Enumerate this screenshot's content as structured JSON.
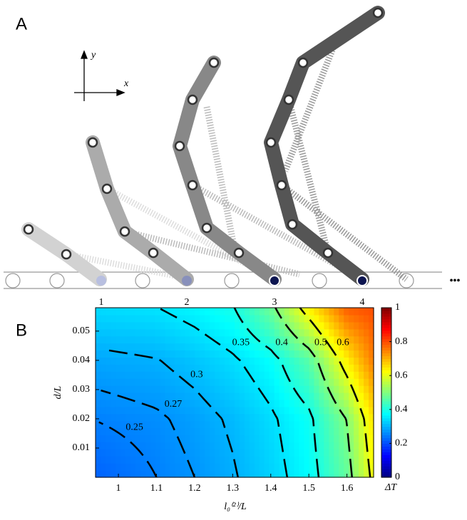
{
  "panel_a": {
    "label": "A",
    "axis_y": "y",
    "axis_x": "x",
    "steps": [
      "1",
      "2",
      "3",
      "4"
    ],
    "ellipsis": "•••"
  },
  "chart_data": {
    "type": "contour",
    "label": "B",
    "xlabel": "l₀⁽²⁾/L",
    "ylabel": "d/L",
    "colorbar_label": "ΔT",
    "x": [
      0.94,
      1.1,
      1.2,
      1.3,
      1.4,
      1.5,
      1.6,
      1.67
    ],
    "y": [
      0,
      0.02,
      0.04,
      0.058
    ],
    "z": [
      [
        0.22,
        0.25,
        0.27,
        0.295,
        0.331,
        0.375,
        0.472,
        0.619
      ],
      [
        0.251,
        0.264,
        0.282,
        0.307,
        0.342,
        0.387,
        0.503,
        0.654
      ],
      [
        0.288,
        0.298,
        0.317,
        0.343,
        0.379,
        0.46,
        0.636,
        0.754
      ],
      [
        0.34,
        0.349,
        0.369,
        0.396,
        0.481,
        0.636,
        0.784,
        0.8
      ]
    ],
    "levels": [
      0.25,
      0.27,
      0.3,
      0.35,
      0.4,
      0.5,
      0.6
    ],
    "xlim": [
      0.94,
      1.67
    ],
    "ylim": [
      0,
      0.058
    ],
    "xticks": [
      1,
      1.1,
      1.2,
      1.3,
      1.4,
      1.5,
      1.6
    ],
    "yticks": [
      0.01,
      0.02,
      0.03,
      0.04,
      0.05
    ],
    "clim": [
      0,
      1
    ],
    "cticks": [
      0,
      0.2,
      0.4,
      0.6,
      0.8,
      1
    ],
    "colormap": "jet"
  }
}
